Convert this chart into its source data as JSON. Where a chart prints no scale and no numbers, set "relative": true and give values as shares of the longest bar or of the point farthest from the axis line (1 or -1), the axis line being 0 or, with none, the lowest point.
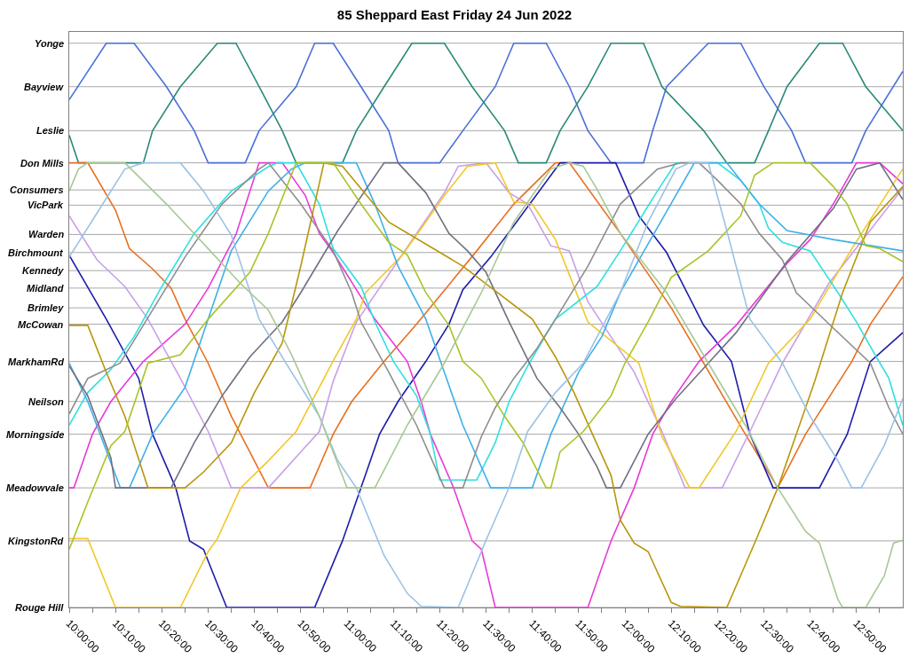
{
  "chart_data": {
    "type": "line",
    "title": "85 Sheppard East Friday 24 Jun 2022",
    "relative": true,
    "marker": "none",
    "line_style": "solid",
    "xlim": [
      "2022-06-24T10:00",
      "2022-06-24T13:00"
    ],
    "xticks": [
      {
        "value": "2022-06-24T10:00",
        "label": "10:00:00"
      },
      {
        "value": "2022-06-24T10:05",
        "label": null
      },
      {
        "value": "2022-06-24T10:10",
        "label": "10:10:00"
      },
      {
        "value": "2022-06-24T10:15",
        "label": null
      },
      {
        "value": "2022-06-24T10:20",
        "label": "10:20:00"
      },
      {
        "value": "2022-06-24T10:25",
        "label": null
      },
      {
        "value": "2022-06-24T10:30",
        "label": "10:30:00"
      },
      {
        "value": "2022-06-24T10:35",
        "label": null
      },
      {
        "value": "2022-06-24T10:40",
        "label": "10:40:00"
      },
      {
        "value": "2022-06-24T10:45",
        "label": null
      },
      {
        "value": "2022-06-24T10:50",
        "label": "10:50:00"
      },
      {
        "value": "2022-06-24T10:55",
        "label": null
      },
      {
        "value": "2022-06-24T11:00",
        "label": "11:00:00"
      },
      {
        "value": "2022-06-24T11:05",
        "label": null
      },
      {
        "value": "2022-06-24T11:10",
        "label": "11:10:00"
      },
      {
        "value": "2022-06-24T11:15",
        "label": null
      },
      {
        "value": "2022-06-24T11:20",
        "label": "11:20:00"
      },
      {
        "value": "2022-06-24T11:25",
        "label": null
      },
      {
        "value": "2022-06-24T11:30",
        "label": "11:30:00"
      },
      {
        "value": "2022-06-24T11:35",
        "label": null
      },
      {
        "value": "2022-06-24T11:40",
        "label": "11:40:00"
      },
      {
        "value": "2022-06-24T11:45",
        "label": null
      },
      {
        "value": "2022-06-24T11:50",
        "label": "11:50:00"
      },
      {
        "value": "2022-06-24T11:55",
        "label": null
      },
      {
        "value": "2022-06-24T12:00",
        "label": "12:00:00"
      },
      {
        "value": "2022-06-24T12:05",
        "label": null
      },
      {
        "value": "2022-06-24T12:10",
        "label": "12:10:00"
      },
      {
        "value": "2022-06-24T12:15",
        "label": null
      },
      {
        "value": "2022-06-24T12:20",
        "label": "12:20:00"
      },
      {
        "value": "2022-06-24T12:25",
        "label": null
      },
      {
        "value": "2022-06-24T12:30",
        "label": "12:30:00"
      },
      {
        "value": "2022-06-24T12:35",
        "label": null
      },
      {
        "value": "2022-06-24T12:40",
        "label": "12:40:00"
      },
      {
        "value": "2022-06-24T12:45",
        "label": null
      },
      {
        "value": "2022-06-24T12:50",
        "label": "12:50:00"
      },
      {
        "value": "2022-06-24T12:55",
        "label": null
      }
    ],
    "ref_lines": [
      {
        "axis": "y",
        "value": 1,
        "label": "Yonge"
      },
      {
        "axis": "y",
        "value": 0.923,
        "label": "Bayview"
      },
      {
        "axis": "y",
        "value": 0.845,
        "label": "Leslie"
      },
      {
        "axis": "y",
        "value": 0.788,
        "label": "Don Mills"
      },
      {
        "axis": "y",
        "value": 0.74,
        "label": "Consumers"
      },
      {
        "axis": "y",
        "value": 0.713,
        "label": "VicPark"
      },
      {
        "axis": "y",
        "value": 0.661,
        "label": "Warden"
      },
      {
        "axis": "y",
        "value": 0.629,
        "label": "Birchmount"
      },
      {
        "axis": "y",
        "value": 0.597,
        "label": "Kennedy"
      },
      {
        "axis": "y",
        "value": 0.566,
        "label": "Midland"
      },
      {
        "axis": "y",
        "value": 0.531,
        "label": "Brimley"
      },
      {
        "axis": "y",
        "value": 0.502,
        "label": "McCowan"
      },
      {
        "axis": "y",
        "value": 0.436,
        "label": "MarkhamRd"
      },
      {
        "axis": "y",
        "value": 0.365,
        "label": "Neilson"
      },
      {
        "axis": "y",
        "value": 0.307,
        "label": "Morningside"
      },
      {
        "axis": "y",
        "value": 0.212,
        "label": "Meadowvale"
      },
      {
        "axis": "y",
        "value": 0.118,
        "label": "KingstonRd"
      },
      {
        "axis": "y",
        "value": 0,
        "label": "Rouge Hill"
      }
    ],
    "series": [
      {
        "color": "#4a6fd9",
        "x": [
          "2022-06-24T10:00",
          "2022-06-24T10:08",
          "2022-06-24T10:14",
          "2022-06-24T10:21",
          "2022-06-24T10:27",
          "2022-06-24T10:30",
          "2022-06-24T10:38",
          "2022-06-24T10:41",
          "2022-06-24T10:49",
          "2022-06-24T10:53",
          "2022-06-24T10:57",
          "2022-06-24T11:03",
          "2022-06-24T11:09",
          "2022-06-24T11:11",
          "2022-06-24T11:20",
          "2022-06-24T11:25",
          "2022-06-24T11:32",
          "2022-06-24T11:36",
          "2022-06-24T11:43",
          "2022-06-24T11:48",
          "2022-06-24T11:52",
          "2022-06-24T11:57",
          "2022-06-24T12:04",
          "2022-06-24T12:06",
          "2022-06-24T12:09",
          "2022-06-24T12:18",
          "2022-06-24T12:25",
          "2022-06-24T12:30",
          "2022-06-24T12:36",
          "2022-06-24T12:39",
          "2022-06-24T12:49",
          "2022-06-24T12:52",
          "2022-06-24T13:00"
        ],
        "values": [
          0.9,
          1,
          1,
          0.923,
          0.845,
          0.788,
          0.788,
          0.845,
          0.923,
          1,
          1,
          0.923,
          0.845,
          0.788,
          0.788,
          0.845,
          0.923,
          1,
          1,
          0.923,
          0.845,
          0.788,
          0.788,
          0.845,
          0.923,
          1,
          1,
          0.923,
          0.845,
          0.788,
          0.788,
          0.845,
          0.95
        ]
      },
      {
        "color": "#2a8a78",
        "x": [
          "2022-06-24T10:00",
          "2022-06-24T10:02",
          "2022-06-24T10:16",
          "2022-06-24T10:18",
          "2022-06-24T10:24",
          "2022-06-24T10:32",
          "2022-06-24T10:36",
          "2022-06-24T10:41",
          "2022-06-24T10:46",
          "2022-06-24T10:49",
          "2022-06-24T10:59",
          "2022-06-24T11:02",
          "2022-06-24T11:08",
          "2022-06-24T11:14",
          "2022-06-24T11:21",
          "2022-06-24T11:27",
          "2022-06-24T11:34",
          "2022-06-24T11:37",
          "2022-06-24T11:43",
          "2022-06-24T11:46",
          "2022-06-24T11:52",
          "2022-06-24T11:57",
          "2022-06-24T12:04",
          "2022-06-24T12:08",
          "2022-06-24T12:17",
          "2022-06-24T12:22",
          "2022-06-24T12:28",
          "2022-06-24T12:31",
          "2022-06-24T12:35",
          "2022-06-24T12:42",
          "2022-06-24T12:47",
          "2022-06-24T12:52",
          "2022-06-24T13:00"
        ],
        "values": [
          0.837,
          0.788,
          0.788,
          0.845,
          0.923,
          1,
          1,
          0.923,
          0.845,
          0.788,
          0.788,
          0.845,
          0.923,
          1,
          1,
          0.923,
          0.845,
          0.788,
          0.788,
          0.845,
          0.923,
          1,
          1,
          0.923,
          0.845,
          0.788,
          0.788,
          0.845,
          0.923,
          1,
          1,
          0.923,
          0.845
        ]
      },
      {
        "color": "#e87020",
        "x": [
          "2022-06-24T10:00",
          "2022-06-24T10:04",
          "2022-06-24T10:10",
          "2022-06-24T10:13",
          "2022-06-24T10:18",
          "2022-06-24T10:22",
          "2022-06-24T10:25",
          "2022-06-24T10:30",
          "2022-06-24T10:35",
          "2022-06-24T10:43",
          "2022-06-24T10:52",
          "2022-06-24T10:57",
          "2022-06-24T11:01",
          "2022-06-24T11:08",
          "2022-06-24T11:15",
          "2022-06-24T11:28",
          "2022-06-24T11:36",
          "2022-06-24T11:45",
          "2022-06-24T11:48",
          "2022-06-24T11:59",
          "2022-06-24T12:10",
          "2022-06-24T12:26",
          "2022-06-24T12:33",
          "2022-06-24T12:39",
          "2022-06-24T12:49",
          "2022-06-24T12:53",
          "2022-06-24T13:00"
        ],
        "values": [
          0.788,
          0.788,
          0.704,
          0.636,
          0.6,
          0.566,
          0.511,
          0.433,
          0.339,
          0.212,
          0.212,
          0.307,
          0.365,
          0.436,
          0.502,
          0.632,
          0.715,
          0.788,
          0.788,
          0.663,
          0.531,
          0.307,
          0.212,
          0.307,
          0.436,
          0.502,
          0.586
        ]
      },
      {
        "color": "#1c1caa",
        "x": [
          "2022-06-24T10:00",
          "2022-06-24T10:08",
          "2022-06-24T10:15",
          "2022-06-24T10:18",
          "2022-06-24T10:23",
          "2022-06-24T10:26",
          "2022-06-24T10:29",
          "2022-06-24T10:34",
          "2022-06-24T10:53",
          "2022-06-24T10:59",
          "2022-06-24T11:03",
          "2022-06-24T11:07",
          "2022-06-24T11:11",
          "2022-06-24T11:17",
          "2022-06-24T11:22",
          "2022-06-24T11:25",
          "2022-06-24T11:31",
          "2022-06-24T11:46",
          "2022-06-24T11:58",
          "2022-06-24T12:03",
          "2022-06-24T12:09",
          "2022-06-24T12:17",
          "2022-06-24T12:23",
          "2022-06-24T12:27",
          "2022-06-24T12:32",
          "2022-06-24T12:42",
          "2022-06-24T12:48",
          "2022-06-24T12:53",
          "2022-06-24T13:00"
        ],
        "values": [
          0.624,
          0.511,
          0.406,
          0.307,
          0.212,
          0.118,
          0.103,
          0,
          0,
          0.118,
          0.212,
          0.307,
          0.365,
          0.436,
          0.502,
          0.563,
          0.621,
          0.788,
          0.788,
          0.694,
          0.629,
          0.5,
          0.436,
          0.307,
          0.212,
          0.212,
          0.307,
          0.436,
          0.487
        ]
      },
      {
        "color": "#e83ad8",
        "x": [
          "2022-06-24T10:00",
          "2022-06-24T10:01",
          "2022-06-24T10:05",
          "2022-06-24T10:09",
          "2022-06-24T10:16",
          "2022-06-24T10:25",
          "2022-06-24T10:30",
          "2022-06-24T10:36",
          "2022-06-24T10:41",
          "2022-06-24T10:46",
          "2022-06-24T10:51",
          "2022-06-24T10:54",
          "2022-06-24T10:57",
          "2022-06-24T11:06",
          "2022-06-24T11:13",
          "2022-06-24T11:16",
          "2022-06-24T11:18",
          "2022-06-24T11:23",
          "2022-06-24T11:27",
          "2022-06-24T11:29",
          "2022-06-24T11:32",
          "2022-06-24T11:52",
          "2022-06-24T11:57",
          "2022-06-24T12:02",
          "2022-06-24T12:06",
          "2022-06-24T12:10",
          "2022-06-24T12:16",
          "2022-06-24T12:24",
          "2022-06-24T12:35",
          "2022-06-24T12:40",
          "2022-06-24T12:45",
          "2022-06-24T12:50",
          "2022-06-24T12:55",
          "2022-06-24T13:00"
        ],
        "values": [
          0.212,
          0.212,
          0.307,
          0.365,
          0.436,
          0.502,
          0.566,
          0.661,
          0.788,
          0.788,
          0.73,
          0.663,
          0.629,
          0.511,
          0.436,
          0.365,
          0.307,
          0.212,
          0.118,
          0.103,
          0,
          0,
          0.118,
          0.212,
          0.307,
          0.365,
          0.436,
          0.5,
          0.61,
          0.652,
          0.715,
          0.788,
          0.788,
          0.751
        ]
      },
      {
        "color": "#c8a0e8",
        "x": [
          "2022-06-24T10:00",
          "2022-06-24T10:06",
          "2022-06-24T10:12",
          "2022-06-24T10:17",
          "2022-06-24T10:24",
          "2022-06-24T10:30",
          "2022-06-24T10:35",
          "2022-06-24T10:43",
          "2022-06-24T10:54",
          "2022-06-24T10:57",
          "2022-06-24T11:02",
          "2022-06-24T11:21",
          "2022-06-24T11:24",
          "2022-06-24T11:30",
          "2022-06-24T11:35",
          "2022-06-24T11:39",
          "2022-06-24T11:44",
          "2022-06-24T11:48",
          "2022-06-24T11:52",
          "2022-06-24T12:02",
          "2022-06-24T12:08",
          "2022-06-24T12:13",
          "2022-06-24T12:21",
          "2022-06-24T12:27",
          "2022-06-24T12:34",
          "2022-06-24T12:44",
          "2022-06-24T13:00"
        ],
        "values": [
          0.694,
          0.616,
          0.569,
          0.511,
          0.406,
          0.312,
          0.212,
          0.212,
          0.312,
          0.401,
          0.506,
          0.735,
          0.782,
          0.788,
          0.735,
          0.715,
          0.641,
          0.632,
          0.542,
          0.417,
          0.312,
          0.212,
          0.212,
          0.312,
          0.433,
          0.574,
          0.743
        ]
      },
      {
        "color": "#f2c828",
        "x": [
          "2022-06-24T10:00",
          "2022-06-24T10:04",
          "2022-06-24T10:10",
          "2022-06-24T10:24",
          "2022-06-24T10:30",
          "2022-06-24T10:32",
          "2022-06-24T10:37",
          "2022-06-24T10:43",
          "2022-06-24T10:49",
          "2022-06-24T10:57",
          "2022-06-24T11:02",
          "2022-06-24T11:04",
          "2022-06-24T11:12",
          "2022-06-24T11:21",
          "2022-06-24T11:26",
          "2022-06-24T11:32",
          "2022-06-24T11:36",
          "2022-06-24T11:40",
          "2022-06-24T11:45",
          "2022-06-24T11:52",
          "2022-06-24T12:03",
          "2022-06-24T12:08",
          "2022-06-24T12:14",
          "2022-06-24T12:16",
          "2022-06-24T12:24",
          "2022-06-24T12:31",
          "2022-06-24T12:40",
          "2022-06-24T12:49",
          "2022-06-24T13:00"
        ],
        "values": [
          0.122,
          0.122,
          0,
          0,
          0.099,
          0.122,
          0.212,
          0.26,
          0.312,
          0.437,
          0.511,
          0.558,
          0.625,
          0.73,
          0.782,
          0.788,
          0.719,
          0.715,
          0.652,
          0.506,
          0.433,
          0.303,
          0.212,
          0.212,
          0.312,
          0.433,
          0.511,
          0.636,
          0.777
        ]
      },
      {
        "color": "#2ee0e0",
        "x": [
          "2022-06-24T10:00",
          "2022-06-24T10:04",
          "2022-06-24T10:09",
          "2022-06-24T10:14",
          "2022-06-24T10:20",
          "2022-06-24T10:27",
          "2022-06-24T10:35",
          "2022-06-24T10:43",
          "2022-06-24T10:45",
          "2022-06-24T10:49",
          "2022-06-24T10:54",
          "2022-06-24T10:57",
          "2022-06-24T11:03",
          "2022-06-24T11:06",
          "2022-06-24T11:10",
          "2022-06-24T11:15",
          "2022-06-24T11:18",
          "2022-06-24T11:20",
          "2022-06-24T11:28",
          "2022-06-24T11:32",
          "2022-06-24T11:35",
          "2022-06-24T11:39",
          "2022-06-24T11:43",
          "2022-06-24T11:45",
          "2022-06-24T11:54",
          "2022-06-24T11:59",
          "2022-06-24T12:07",
          "2022-06-24T12:11",
          "2022-06-24T12:20",
          "2022-06-24T12:25",
          "2022-06-24T12:29",
          "2022-06-24T12:31",
          "2022-06-24T12:34",
          "2022-06-24T12:40",
          "2022-06-24T12:46",
          "2022-06-24T12:50",
          "2022-06-24T12:54",
          "2022-06-24T12:57",
          "2022-06-24T13:00"
        ],
        "values": [
          0.323,
          0.381,
          0.422,
          0.48,
          0.569,
          0.663,
          0.738,
          0.781,
          0.788,
          0.788,
          0.715,
          0.636,
          0.569,
          0.506,
          0.436,
          0.375,
          0.307,
          0.226,
          0.226,
          0.292,
          0.365,
          0.428,
          0.484,
          0.511,
          0.569,
          0.632,
          0.738,
          0.788,
          0.788,
          0.757,
          0.715,
          0.672,
          0.647,
          0.632,
          0.558,
          0.506,
          0.448,
          0.406,
          0.323
        ]
      },
      {
        "color": "#3fb0e8",
        "x": [
          "2022-06-24T10:00",
          "2022-06-24T10:04",
          "2022-06-24T10:11",
          "2022-06-24T10:13",
          "2022-06-24T10:18",
          "2022-06-24T10:25",
          "2022-06-24T10:30",
          "2022-06-24T10:35",
          "2022-06-24T10:43",
          "2022-06-24T10:48",
          "2022-06-24T10:51",
          "2022-06-24T11:02",
          "2022-06-24T11:06",
          "2022-06-24T11:11",
          "2022-06-24T11:17",
          "2022-06-24T11:21",
          "2022-06-24T11:25",
          "2022-06-24T11:31",
          "2022-06-24T11:40",
          "2022-06-24T11:44",
          "2022-06-24T11:50",
          "2022-06-24T11:55",
          "2022-06-24T11:59",
          "2022-06-24T12:15",
          "2022-06-24T12:22",
          "2022-06-24T12:29",
          "2022-06-24T12:35",
          "2022-06-24T12:45",
          "2022-06-24T13:00"
        ],
        "values": [
          0.433,
          0.365,
          0.213,
          0.212,
          0.307,
          0.39,
          0.511,
          0.632,
          0.738,
          0.777,
          0.788,
          0.788,
          0.715,
          0.605,
          0.511,
          0.417,
          0.323,
          0.212,
          0.212,
          0.307,
          0.417,
          0.48,
          0.558,
          0.788,
          0.788,
          0.715,
          0.668,
          0.652,
          0.632
        ]
      },
      {
        "color": "#8e8e8e",
        "x": [
          "2022-06-24T10:00",
          "2022-06-24T10:04",
          "2022-06-24T10:11",
          "2022-06-24T10:18",
          "2022-06-24T10:25",
          "2022-06-24T10:33",
          "2022-06-24T10:41",
          "2022-06-24T10:43",
          "2022-06-24T10:50",
          "2022-06-24T10:57",
          "2022-06-24T11:01",
          "2022-06-24T11:03",
          "2022-06-24T11:09",
          "2022-06-24T11:15",
          "2022-06-24T11:21",
          "2022-06-24T11:25",
          "2022-06-24T11:29",
          "2022-06-24T11:32",
          "2022-06-24T11:36",
          "2022-06-24T11:41",
          "2022-06-24T11:45",
          "2022-06-24T11:52",
          "2022-06-24T11:59",
          "2022-06-24T12:07",
          "2022-06-24T12:12",
          "2022-06-24T12:16",
          "2022-06-24T12:20",
          "2022-06-24T12:25",
          "2022-06-24T12:29",
          "2022-06-24T12:34",
          "2022-06-24T12:37",
          "2022-06-24T12:45",
          "2022-06-24T12:53",
          "2022-06-24T12:57",
          "2022-06-24T13:00"
        ],
        "values": [
          0.343,
          0.406,
          0.433,
          0.527,
          0.621,
          0.715,
          0.777,
          0.788,
          0.715,
          0.632,
          0.558,
          0.506,
          0.417,
          0.323,
          0.212,
          0.212,
          0.303,
          0.354,
          0.406,
          0.459,
          0.511,
          0.605,
          0.715,
          0.777,
          0.788,
          0.788,
          0.757,
          0.715,
          0.663,
          0.616,
          0.558,
          0.495,
          0.433,
          0.354,
          0.307
        ]
      },
      {
        "color": "#707080",
        "x": [
          "2022-06-24T10:00",
          "2022-06-24T10:04",
          "2022-06-24T10:09",
          "2022-06-24T10:10",
          "2022-06-24T10:22",
          "2022-06-24T10:27",
          "2022-06-24T10:33",
          "2022-06-24T10:39",
          "2022-06-24T10:46",
          "2022-06-24T10:50",
          "2022-06-24T10:58",
          "2022-06-24T11:08",
          "2022-06-24T11:11",
          "2022-06-24T11:17",
          "2022-06-24T11:22",
          "2022-06-24T11:26",
          "2022-06-24T11:30",
          "2022-06-24T11:35",
          "2022-06-24T11:41",
          "2022-06-24T11:46",
          "2022-06-24T11:50",
          "2022-06-24T11:54",
          "2022-06-24T11:56",
          "2022-06-24T11:59",
          "2022-06-24T12:05",
          "2022-06-24T12:11",
          "2022-06-24T12:18",
          "2022-06-24T12:24",
          "2022-06-24T12:35",
          "2022-06-24T12:45",
          "2022-06-24T12:50",
          "2022-06-24T12:55",
          "2022-06-24T13:00"
        ],
        "values": [
          0.428,
          0.375,
          0.265,
          0.212,
          0.212,
          0.292,
          0.375,
          0.444,
          0.506,
          0.558,
          0.668,
          0.788,
          0.788,
          0.735,
          0.663,
          0.632,
          0.594,
          0.506,
          0.406,
          0.354,
          0.307,
          0.249,
          0.212,
          0.212,
          0.307,
          0.37,
          0.433,
          0.487,
          0.613,
          0.707,
          0.777,
          0.788,
          0.723
        ]
      },
      {
        "color": "#b8960c",
        "x": [
          "2022-06-24T10:00",
          "2022-06-24T10:04",
          "2022-06-24T10:08",
          "2022-06-24T10:12",
          "2022-06-24T10:17",
          "2022-06-24T10:25",
          "2022-06-24T10:29",
          "2022-06-24T10:35",
          "2022-06-24T10:40",
          "2022-06-24T10:46",
          "2022-06-24T10:50",
          "2022-06-24T10:55",
          "2022-06-24T10:59",
          "2022-06-24T11:09",
          "2022-06-24T11:25",
          "2022-06-24T11:40",
          "2022-06-24T11:45",
          "2022-06-24T11:49",
          "2022-06-24T11:53",
          "2022-06-24T11:57",
          "2022-06-24T11:59",
          "2022-06-24T12:02",
          "2022-06-24T12:05",
          "2022-06-24T12:10",
          "2022-06-24T12:12",
          "2022-06-24T12:22",
          "2022-06-24T12:28",
          "2022-06-24T12:33",
          "2022-06-24T12:37",
          "2022-06-24T12:41",
          "2022-06-24T12:47",
          "2022-06-24T12:53",
          "2022-06-24T13:00"
        ],
        "values": [
          0.5,
          0.5,
          0.417,
          0.339,
          0.212,
          0.212,
          0.24,
          0.292,
          0.381,
          0.469,
          0.605,
          0.788,
          0.782,
          0.683,
          0.605,
          0.511,
          0.444,
          0.381,
          0.307,
          0.234,
          0.155,
          0.114,
          0.099,
          0.009,
          0.002,
          0,
          0.114,
          0.212,
          0.307,
          0.401,
          0.558,
          0.683,
          0.746
        ]
      },
      {
        "color": "#a8c428",
        "x": [
          "2022-06-24T10:00",
          "2022-06-24T10:04",
          "2022-06-24T10:09",
          "2022-06-24T10:12",
          "2022-06-24T10:17",
          "2022-06-24T10:24",
          "2022-06-24T10:30",
          "2022-06-24T10:39",
          "2022-06-24T10:43",
          "2022-06-24T10:49",
          "2022-06-24T10:57",
          "2022-06-24T11:03",
          "2022-06-24T11:09",
          "2022-06-24T11:13",
          "2022-06-24T11:17",
          "2022-06-24T11:22",
          "2022-06-24T11:25",
          "2022-06-24T11:29",
          "2022-06-24T11:34",
          "2022-06-24T11:38",
          "2022-06-24T11:43",
          "2022-06-24T11:44",
          "2022-06-24T11:46",
          "2022-06-24T11:51",
          "2022-06-24T11:57",
          "2022-06-24T12:00",
          "2022-06-24T12:05",
          "2022-06-24T12:10",
          "2022-06-24T12:18",
          "2022-06-24T12:25",
          "2022-06-24T12:28",
          "2022-06-24T12:32",
          "2022-06-24T12:40",
          "2022-06-24T12:45",
          "2022-06-24T12:48",
          "2022-06-24T12:52",
          "2022-06-24T12:55",
          "2022-06-24T13:00"
        ],
        "values": [
          0.103,
          0.187,
          0.287,
          0.312,
          0.433,
          0.448,
          0.511,
          0.594,
          0.663,
          0.788,
          0.788,
          0.715,
          0.647,
          0.625,
          0.558,
          0.5,
          0.436,
          0.406,
          0.339,
          0.292,
          0.212,
          0.212,
          0.276,
          0.312,
          0.375,
          0.433,
          0.506,
          0.585,
          0.632,
          0.694,
          0.766,
          0.788,
          0.788,
          0.746,
          0.715,
          0.641,
          0.636,
          0.613
        ]
      },
      {
        "color": "#9cc2e4",
        "x": [
          "2022-06-24T10:00",
          "2022-06-24T10:06",
          "2022-06-24T10:12",
          "2022-06-24T10:16",
          "2022-06-24T10:24",
          "2022-06-24T10:29",
          "2022-06-24T10:35",
          "2022-06-24T10:41",
          "2022-06-24T10:48",
          "2022-06-24T10:54",
          "2022-06-24T10:58",
          "2022-06-24T11:02",
          "2022-06-24T11:08",
          "2022-06-24T11:13",
          "2022-06-24T11:16",
          "2022-06-24T11:24",
          "2022-06-24T11:30",
          "2022-06-24T11:35",
          "2022-06-24T11:39",
          "2022-06-24T11:45",
          "2022-06-24T11:51",
          "2022-06-24T11:59",
          "2022-06-24T12:05",
          "2022-06-24T12:11",
          "2022-06-24T12:14",
          "2022-06-24T12:18",
          "2022-06-24T12:22",
          "2022-06-24T12:27",
          "2022-06-24T12:34",
          "2022-06-24T12:40",
          "2022-06-24T12:46",
          "2022-06-24T12:49",
          "2022-06-24T12:51",
          "2022-06-24T12:56",
          "2022-06-24T13:00"
        ],
        "values": [
          0.621,
          0.699,
          0.777,
          0.788,
          0.788,
          0.738,
          0.66,
          0.511,
          0.417,
          0.339,
          0.26,
          0.212,
          0.092,
          0.025,
          0.002,
          0,
          0.119,
          0.213,
          0.312,
          0.381,
          0.433,
          0.558,
          0.683,
          0.777,
          0.788,
          0.788,
          0.668,
          0.511,
          0.433,
          0.339,
          0.26,
          0.212,
          0.212,
          0.287,
          0.37
        ]
      },
      {
        "color": "#a8c898",
        "x": [
          "2022-06-24T10:00",
          "2022-06-24T10:02",
          "2022-06-24T10:04",
          "2022-06-24T10:12",
          "2022-06-24T10:21",
          "2022-06-24T10:30",
          "2022-06-24T10:37",
          "2022-06-24T10:43",
          "2022-06-24T10:48",
          "2022-06-24T10:54",
          "2022-06-24T11:00",
          "2022-06-24T11:06",
          "2022-06-24T11:13",
          "2022-06-24T11:21",
          "2022-06-24T11:29",
          "2022-06-24T11:36",
          "2022-06-24T11:44",
          "2022-06-24T11:48",
          "2022-06-24T11:51",
          "2022-06-24T11:54",
          "2022-06-24T11:59",
          "2022-06-24T12:09",
          "2022-06-24T12:18",
          "2022-06-24T12:26",
          "2022-06-24T12:33",
          "2022-06-24T12:39",
          "2022-06-24T12:42",
          "2022-06-24T12:46",
          "2022-06-24T12:47",
          "2022-06-24T12:52",
          "2022-06-24T12:56",
          "2022-06-24T12:58",
          "2022-06-24T13:00"
        ],
        "values": [
          0.738,
          0.777,
          0.788,
          0.788,
          0.715,
          0.636,
          0.574,
          0.527,
          0.448,
          0.339,
          0.212,
          0.212,
          0.323,
          0.433,
          0.558,
          0.683,
          0.777,
          0.788,
          0.782,
          0.741,
          0.663,
          0.558,
          0.433,
          0.323,
          0.212,
          0.135,
          0.114,
          0.014,
          0,
          0,
          0.056,
          0.114,
          0.119
        ]
      }
    ]
  }
}
